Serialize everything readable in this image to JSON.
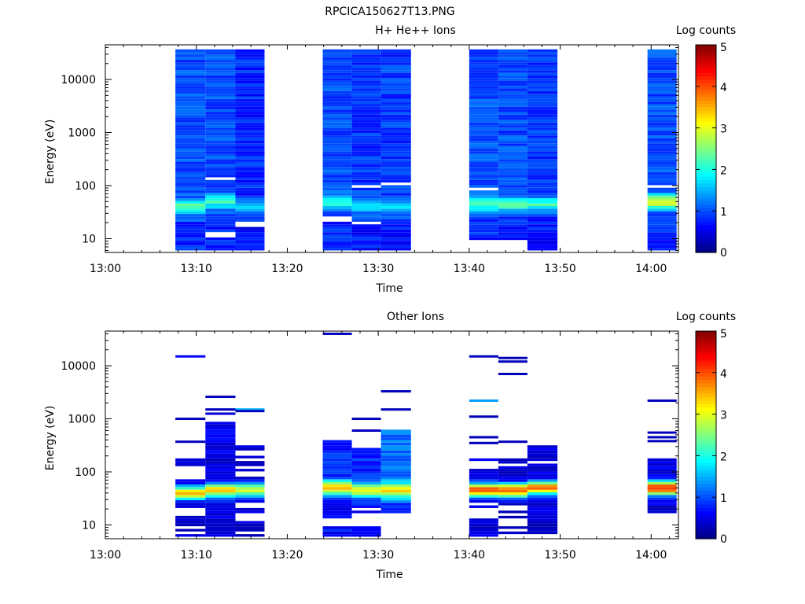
{
  "figure_title": "RPCICA150627T13.PNG",
  "colorscale": [
    "#00007f",
    "#0000ff",
    "#007fff",
    "#00ffff",
    "#7fff7f",
    "#ffff00",
    "#ff7f00",
    "#ff0000",
    "#7f0000"
  ],
  "chart_data": [
    {
      "type": "heatmap",
      "title": "H+ He++ Ions",
      "xlabel": "Time",
      "ylabel": "Energy (eV)",
      "x_ticks": [
        "13:00",
        "13:10",
        "13:20",
        "13:30",
        "13:40",
        "13:50",
        "14:00"
      ],
      "y_ticks": [
        "10",
        "100",
        "1000",
        "10000"
      ],
      "y_scale": "log",
      "ylim": [
        5.5,
        45000
      ],
      "xlim_minutes": [
        0,
        63
      ],
      "colorbar": {
        "label": "Log counts",
        "range": [
          0,
          5
        ],
        "ticks": [
          "0",
          "1",
          "2",
          "3",
          "4",
          "5"
        ]
      },
      "time_columns_minutes": [
        [
          7.7,
          11
        ],
        [
          11,
          14.3
        ],
        [
          14.3,
          17.5
        ],
        [
          23.9,
          27.1
        ],
        [
          27.1,
          30.3
        ],
        [
          30.3,
          33.6
        ],
        [
          40,
          43.2
        ],
        [
          43.2,
          46.4
        ],
        [
          46.4,
          49.7
        ],
        [
          59.6,
          62.8
        ]
      ],
      "profiles": [
        {
          "col": 0,
          "min_e": 6,
          "max_e": 40000,
          "peak_e": 40,
          "peak_v": 2.4,
          "bg": 1.0,
          "gaps": []
        },
        {
          "col": 1,
          "min_e": 6,
          "max_e": 40000,
          "peak_e": 50,
          "peak_v": 2.1,
          "bg": 1.0,
          "gaps": [
            [
              10,
              14
            ],
            [
              125,
              140
            ]
          ]
        },
        {
          "col": 2,
          "min_e": 6,
          "max_e": 40000,
          "peak_e": 40,
          "peak_v": 1.6,
          "bg": 0.8,
          "gaps": [
            [
              17,
              20
            ]
          ]
        },
        {
          "col": 3,
          "min_e": 6,
          "max_e": 40000,
          "peak_e": 50,
          "peak_v": 2.1,
          "bg": 1.0,
          "gaps": [
            [
              22,
              26
            ]
          ]
        },
        {
          "col": 4,
          "min_e": 6,
          "max_e": 40000,
          "peak_e": 40,
          "peak_v": 1.6,
          "bg": 0.9,
          "gaps": [
            [
              18,
              21
            ],
            [
              96,
              104
            ]
          ]
        },
        {
          "col": 5,
          "min_e": 6,
          "max_e": 40000,
          "peak_e": 40,
          "peak_v": 1.6,
          "bg": 0.9,
          "gaps": [
            [
              105,
              115
            ]
          ]
        },
        {
          "col": 6,
          "min_e": 9,
          "max_e": 40000,
          "peak_e": 45,
          "peak_v": 2.3,
          "bg": 1.0,
          "gaps": [
            [
              85,
              95
            ]
          ]
        },
        {
          "col": 7,
          "min_e": 9,
          "max_e": 40000,
          "peak_e": 45,
          "peak_v": 2.4,
          "bg": 1.0,
          "gaps": []
        },
        {
          "col": 8,
          "min_e": 6,
          "max_e": 40000,
          "peak_e": 45,
          "peak_v": 2.2,
          "bg": 0.9,
          "gaps": [
            [
              170,
              185
            ]
          ]
        },
        {
          "col": 9,
          "min_e": 6,
          "max_e": 40000,
          "peak_e": 50,
          "peak_v": 3.0,
          "bg": 1.0,
          "gaps": [
            [
              95,
              105
            ]
          ]
        }
      ]
    },
    {
      "type": "heatmap",
      "title": "Other Ions",
      "xlabel": "Time",
      "ylabel": "Energy (eV)",
      "x_ticks": [
        "13:00",
        "13:10",
        "13:20",
        "13:30",
        "13:40",
        "13:50",
        "14:00"
      ],
      "y_ticks": [
        "10",
        "100",
        "1000",
        "10000"
      ],
      "y_scale": "log",
      "ylim": [
        5.5,
        45000
      ],
      "xlim_minutes": [
        0,
        63
      ],
      "colorbar": {
        "label": "Log counts",
        "range": [
          0,
          5
        ],
        "ticks": [
          "0",
          "1",
          "2",
          "3",
          "4",
          "5"
        ]
      },
      "time_columns_minutes": [
        [
          7.7,
          11
        ],
        [
          11,
          14.3
        ],
        [
          14.3,
          17.5
        ],
        [
          23.9,
          27.1
        ],
        [
          27.1,
          30.3
        ],
        [
          30.3,
          33.6
        ],
        [
          40,
          43.2
        ],
        [
          43.2,
          46.4
        ],
        [
          46.4,
          49.7
        ],
        [
          59.6,
          62.8
        ]
      ],
      "profiles": [
        {
          "col": 0,
          "min_e": 6,
          "max_e": 200,
          "peak_e": 40,
          "peak_v": 3.6,
          "bg": 0.3,
          "gaps": [
            [
              15,
              21
            ]
          ]
        },
        {
          "col": 1,
          "min_e": 6,
          "max_e": 900,
          "peak_e": 45,
          "peak_v": 3.4,
          "bg": 0.5,
          "gaps": []
        },
        {
          "col": 2,
          "min_e": 6,
          "max_e": 400,
          "peak_e": 45,
          "peak_v": 3.0,
          "bg": 0.3,
          "gaps": []
        },
        {
          "col": 3,
          "min_e": 6,
          "max_e": 400,
          "peak_e": 50,
          "peak_v": 3.4,
          "bg": 0.8,
          "gaps": [
            [
              9,
              14
            ]
          ]
        },
        {
          "col": 4,
          "min_e": 6,
          "max_e": 300,
          "peak_e": 45,
          "peak_v": 3.0,
          "bg": 0.8,
          "gaps": [
            [
              9,
              16
            ],
            [
              18,
              22
            ]
          ]
        },
        {
          "col": 5,
          "min_e": 15,
          "max_e": 700,
          "peak_e": 45,
          "peak_v": 3.2,
          "bg": 1.2,
          "gaps": []
        },
        {
          "col": 6,
          "min_e": 6,
          "max_e": 200,
          "peak_e": 45,
          "peak_v": 4.1,
          "bg": 0.4,
          "gaps": [
            [
              14,
              18
            ]
          ]
        },
        {
          "col": 7,
          "min_e": 6,
          "max_e": 180,
          "peak_e": 45,
          "peak_v": 4.0,
          "bg": 0.3,
          "gaps": [
            [
              9,
              13
            ]
          ]
        },
        {
          "col": 8,
          "min_e": 6,
          "max_e": 350,
          "peak_e": 50,
          "peak_v": 3.8,
          "bg": 0.4,
          "gaps": []
        },
        {
          "col": 9,
          "min_e": 15,
          "max_e": 200,
          "peak_e": 50,
          "peak_v": 4.3,
          "bg": 0.5,
          "gaps": []
        }
      ],
      "sparse_lines": [
        {
          "col": 0,
          "e": 15000,
          "v": 0.6
        },
        {
          "col": 0,
          "e": 1000,
          "v": 0.3
        },
        {
          "col": 0,
          "e": 370,
          "v": 0.3
        },
        {
          "col": 1,
          "e": 2600,
          "v": 0.3
        },
        {
          "col": 1,
          "e": 1500,
          "v": 0.3
        },
        {
          "col": 1,
          "e": 1250,
          "v": 0.4
        },
        {
          "col": 2,
          "e": 1500,
          "v": 1.5
        },
        {
          "col": 2,
          "e": 1400,
          "v": 0.3
        },
        {
          "col": 3,
          "e": 40000,
          "v": 0.3
        },
        {
          "col": 4,
          "e": 1000,
          "v": 0.3
        },
        {
          "col": 4,
          "e": 600,
          "v": 0.3
        },
        {
          "col": 5,
          "e": 3300,
          "v": 0.3
        },
        {
          "col": 5,
          "e": 1500,
          "v": 0.3
        },
        {
          "col": 6,
          "e": 15000,
          "v": 0.3
        },
        {
          "col": 6,
          "e": 2200,
          "v": 1.4
        },
        {
          "col": 6,
          "e": 1100,
          "v": 0.3
        },
        {
          "col": 6,
          "e": 450,
          "v": 0.3
        },
        {
          "col": 6,
          "e": 350,
          "v": 0.3
        },
        {
          "col": 7,
          "e": 14000,
          "v": 0.3
        },
        {
          "col": 7,
          "e": 12000,
          "v": 0.3
        },
        {
          "col": 7,
          "e": 7000,
          "v": 0.3
        },
        {
          "col": 7,
          "e": 370,
          "v": 0.3
        },
        {
          "col": 9,
          "e": 2200,
          "v": 0.3
        },
        {
          "col": 9,
          "e": 550,
          "v": 0.3
        },
        {
          "col": 9,
          "e": 450,
          "v": 0.3
        },
        {
          "col": 9,
          "e": 380,
          "v": 0.3
        }
      ]
    }
  ]
}
